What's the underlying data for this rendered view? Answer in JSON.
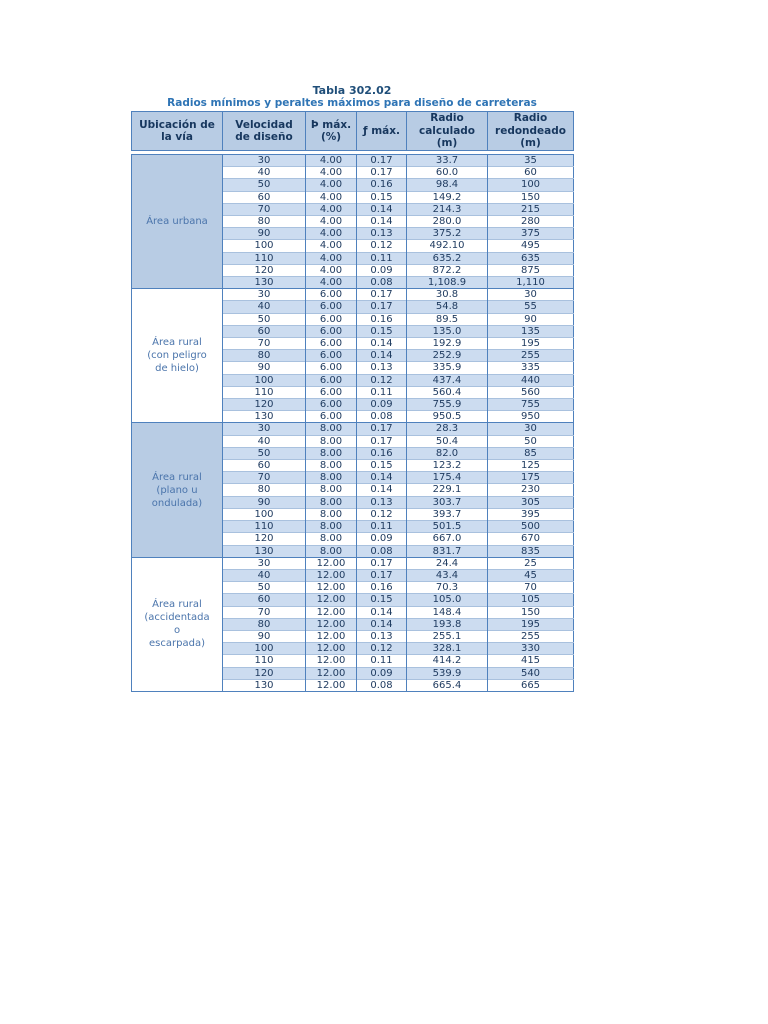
{
  "title": "Tabla 302.02",
  "subtitle": "Radios mínimos y peraltes máximos para diseño de carreteras",
  "colors": {
    "strong_border": "#4f81bd",
    "light_border": "#a9c1de",
    "header_bg": "#b8cce4",
    "stripe_bg": "#ccdcf0",
    "title_text": "#1f4e79",
    "subtitle_text": "#2e74b5",
    "header_text": "#17375e",
    "group_label_text": "#4a74ab",
    "data_text": "#1e3a5f"
  },
  "table": {
    "headers": [
      "Ubicación de\nla vía",
      "Velocidad\nde diseño",
      "Þ máx.\n(%)",
      "ƒ máx.",
      "Radio\ncalculado\n(m)",
      "Radio\nredondeado\n(m)"
    ],
    "groups": [
      {
        "label": "Área urbana",
        "rows": [
          [
            "30",
            "4.00",
            "0.17",
            "33.7",
            "35"
          ],
          [
            "40",
            "4.00",
            "0.17",
            "60.0",
            "60"
          ],
          [
            "50",
            "4.00",
            "0.16",
            "98.4",
            "100"
          ],
          [
            "60",
            "4.00",
            "0.15",
            "149.2",
            "150"
          ],
          [
            "70",
            "4.00",
            "0.14",
            "214.3",
            "215"
          ],
          [
            "80",
            "4.00",
            "0.14",
            "280.0",
            "280"
          ],
          [
            "90",
            "4.00",
            "0.13",
            "375.2",
            "375"
          ],
          [
            "100",
            "4.00",
            "0.12",
            "492.10",
            "495"
          ],
          [
            "110",
            "4.00",
            "0.11",
            "635.2",
            "635"
          ],
          [
            "120",
            "4.00",
            "0.09",
            "872.2",
            "875"
          ],
          [
            "130",
            "4.00",
            "0.08",
            "1,108.9",
            "1,110"
          ]
        ]
      },
      {
        "label": "Área rural\n(con peligro\nde hielo)",
        "rows": [
          [
            "30",
            "6.00",
            "0.17",
            "30.8",
            "30"
          ],
          [
            "40",
            "6.00",
            "0.17",
            "54.8",
            "55"
          ],
          [
            "50",
            "6.00",
            "0.16",
            "89.5",
            "90"
          ],
          [
            "60",
            "6.00",
            "0.15",
            "135.0",
            "135"
          ],
          [
            "70",
            "6.00",
            "0.14",
            "192.9",
            "195"
          ],
          [
            "80",
            "6.00",
            "0.14",
            "252.9",
            "255"
          ],
          [
            "90",
            "6.00",
            "0.13",
            "335.9",
            "335"
          ],
          [
            "100",
            "6.00",
            "0.12",
            "437.4",
            "440"
          ],
          [
            "110",
            "6.00",
            "0.11",
            "560.4",
            "560"
          ],
          [
            "120",
            "6.00",
            "0.09",
            "755.9",
            "755"
          ],
          [
            "130",
            "6.00",
            "0.08",
            "950.5",
            "950"
          ]
        ]
      },
      {
        "label": "Área rural\n(plano u\nondulada)",
        "rows": [
          [
            "30",
            "8.00",
            "0.17",
            "28.3",
            "30"
          ],
          [
            "40",
            "8.00",
            "0.17",
            "50.4",
            "50"
          ],
          [
            "50",
            "8.00",
            "0.16",
            "82.0",
            "85"
          ],
          [
            "60",
            "8.00",
            "0.15",
            "123.2",
            "125"
          ],
          [
            "70",
            "8.00",
            "0.14",
            "175.4",
            "175"
          ],
          [
            "80",
            "8.00",
            "0.14",
            "229.1",
            "230"
          ],
          [
            "90",
            "8.00",
            "0.13",
            "303.7",
            "305"
          ],
          [
            "100",
            "8.00",
            "0.12",
            "393.7",
            "395"
          ],
          [
            "110",
            "8.00",
            "0.11",
            "501.5",
            "500"
          ],
          [
            "120",
            "8.00",
            "0.09",
            "667.0",
            "670"
          ],
          [
            "130",
            "8.00",
            "0.08",
            "831.7",
            "835"
          ]
        ]
      },
      {
        "label": "Área rural\n(accidentada\no\nescarpada)",
        "rows": [
          [
            "30",
            "12.00",
            "0.17",
            "24.4",
            "25"
          ],
          [
            "40",
            "12.00",
            "0.17",
            "43.4",
            "45"
          ],
          [
            "50",
            "12.00",
            "0.16",
            "70.3",
            "70"
          ],
          [
            "60",
            "12.00",
            "0.15",
            "105.0",
            "105"
          ],
          [
            "70",
            "12.00",
            "0.14",
            "148.4",
            "150"
          ],
          [
            "80",
            "12.00",
            "0.14",
            "193.8",
            "195"
          ],
          [
            "90",
            "12.00",
            "0.13",
            "255.1",
            "255"
          ],
          [
            "100",
            "12.00",
            "0.12",
            "328.1",
            "330"
          ],
          [
            "110",
            "12.00",
            "0.11",
            "414.2",
            "415"
          ],
          [
            "120",
            "12.00",
            "0.09",
            "539.9",
            "540"
          ],
          [
            "130",
            "12.00",
            "0.08",
            "665.4",
            "665"
          ]
        ]
      }
    ]
  }
}
